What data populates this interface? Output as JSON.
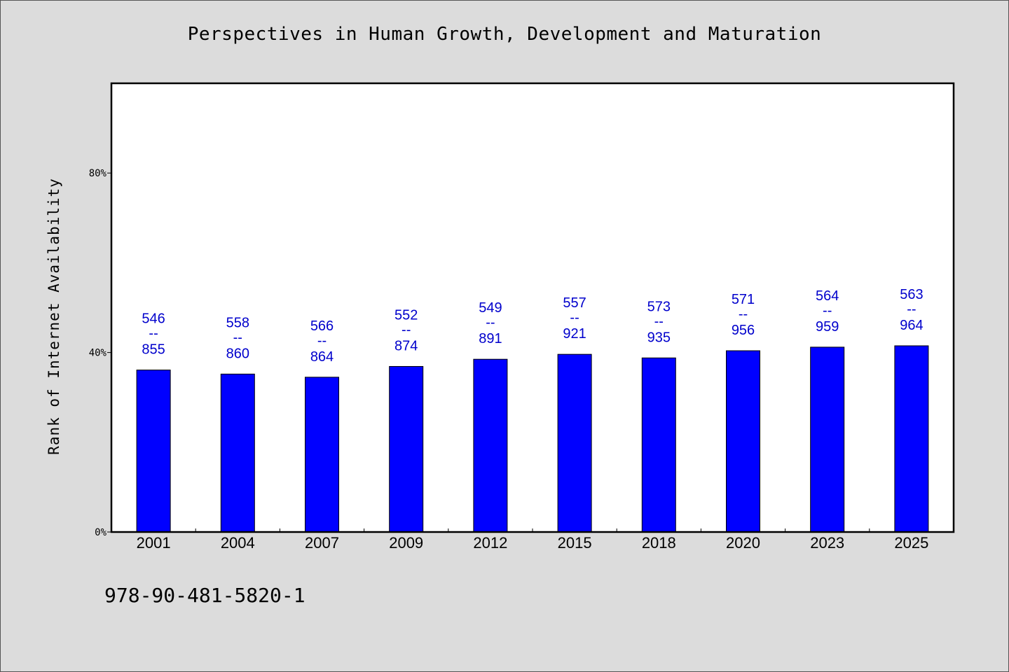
{
  "chart_data": {
    "type": "bar",
    "title": "Perspectives in Human Growth, Development and Maturation",
    "xlabel": "",
    "ylabel": "Rank of Internet Availability",
    "ylim": [
      0,
      100
    ],
    "yticks": [
      {
        "value": 0,
        "label": "0%"
      },
      {
        "value": 40,
        "label": "40%"
      },
      {
        "value": 80,
        "label": "80%"
      }
    ],
    "categories": [
      "2001",
      "2004",
      "2007",
      "2009",
      "2012",
      "2015",
      "2018",
      "2020",
      "2023",
      "2025"
    ],
    "values": [
      36.1,
      35.2,
      34.5,
      36.9,
      38.5,
      39.6,
      38.8,
      40.4,
      41.2,
      41.5
    ],
    "data_labels": [
      {
        "top": "546",
        "mid": "--",
        "bottom": "855"
      },
      {
        "top": "558",
        "mid": "--",
        "bottom": "860"
      },
      {
        "top": "566",
        "mid": "--",
        "bottom": "864"
      },
      {
        "top": "552",
        "mid": "--",
        "bottom": "874"
      },
      {
        "top": "549",
        "mid": "--",
        "bottom": "891"
      },
      {
        "top": "557",
        "mid": "--",
        "bottom": "921"
      },
      {
        "top": "573",
        "mid": "--",
        "bottom": "935"
      },
      {
        "top": "571",
        "mid": "--",
        "bottom": "956"
      },
      {
        "top": "564",
        "mid": "--",
        "bottom": "959"
      },
      {
        "top": "563",
        "mid": "--",
        "bottom": "964"
      }
    ],
    "bar_color": "#0000ff",
    "label_color": "#0000cc",
    "grid": false,
    "legend": "none"
  },
  "footer": {
    "isbn": "978-90-481-5820-1"
  },
  "colors": {
    "background": "#dcdcdc",
    "plot_background": "#ffffff"
  }
}
